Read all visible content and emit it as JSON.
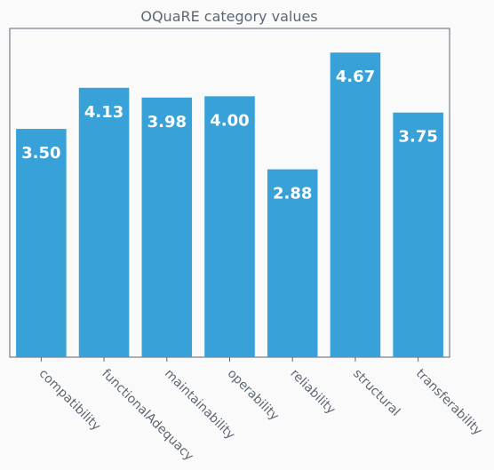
{
  "chart_data": {
    "type": "bar",
    "title": "OQuaRE category values",
    "xlabel": "",
    "ylabel": "",
    "categories": [
      "compatibility",
      "functionalAdequacy",
      "maintainability",
      "operability",
      "reliability",
      "structural",
      "transferability"
    ],
    "values": [
      3.5,
      4.13,
      3.98,
      4.0,
      2.88,
      4.67,
      3.75
    ],
    "value_labels": [
      "3.50",
      "4.13",
      "3.98",
      "4.00",
      "2.88",
      "4.67",
      "3.75"
    ],
    "ylim": [
      0,
      5.04
    ],
    "grid": false,
    "legend": "none",
    "bar_color": "#38a2d8",
    "value_label_color": "#ffffff",
    "text_color": "#5f6673",
    "axis_color": "#5f6673",
    "plot_background": "#fafafa",
    "tick_label_rotation": 45
  }
}
